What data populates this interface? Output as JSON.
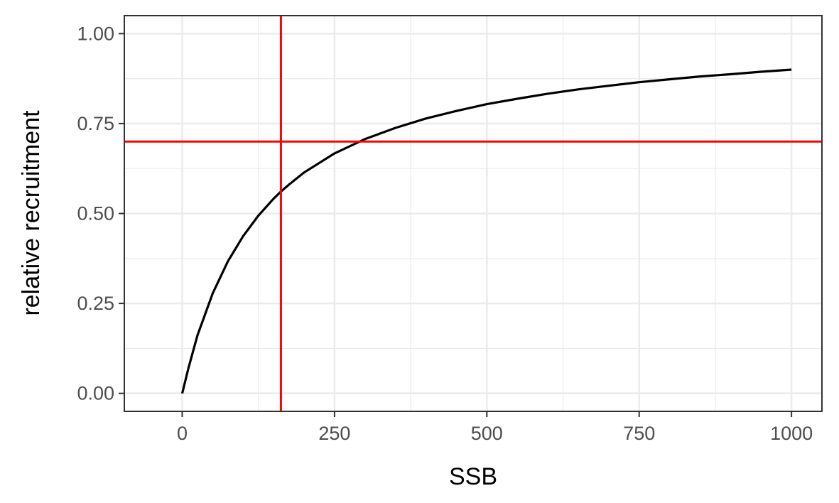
{
  "chart_data": {
    "type": "line",
    "xlabel": "SSB",
    "ylabel": "relative recruitment",
    "xlim": [
      -95,
      1050
    ],
    "ylim": [
      -0.05,
      1.05
    ],
    "x_ticks": [
      0,
      250,
      500,
      750,
      1000
    ],
    "x_tick_labels": [
      "0",
      "250",
      "500",
      "750",
      "1000"
    ],
    "y_ticks": [
      0.0,
      0.25,
      0.5,
      0.75,
      1.0
    ],
    "y_tick_labels": [
      "0.00",
      "0.25",
      "0.50",
      "0.75",
      "1.00"
    ],
    "grid": true,
    "series": [
      {
        "color": "#000000",
        "x": [
          0,
          10,
          25,
          50,
          75,
          100,
          125,
          150,
          162,
          175,
          200,
          250,
          300,
          350,
          400,
          450,
          500,
          550,
          600,
          650,
          700,
          750,
          800,
          850,
          900,
          950,
          1000
        ],
        "y": [
          0.0,
          0.069,
          0.161,
          0.278,
          0.367,
          0.437,
          0.494,
          0.541,
          0.561,
          0.58,
          0.614,
          0.667,
          0.707,
          0.738,
          0.764,
          0.785,
          0.804,
          0.819,
          0.833,
          0.845,
          0.855,
          0.865,
          0.873,
          0.881,
          0.887,
          0.894,
          0.9
        ]
      }
    ],
    "reference_lines": [
      {
        "orientation": "vertical",
        "value": 162,
        "color": "#ff0000"
      },
      {
        "orientation": "horizontal",
        "value": 0.7,
        "color": "#ff0000"
      }
    ]
  }
}
